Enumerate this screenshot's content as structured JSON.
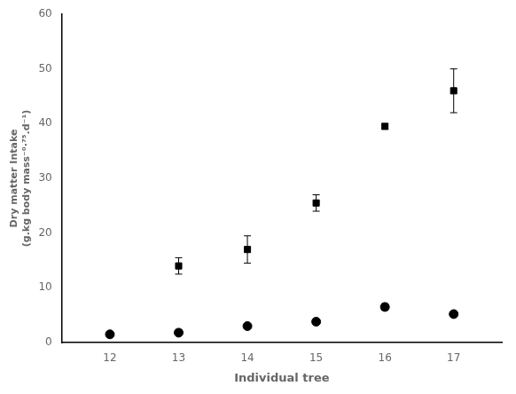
{
  "chart_data": {
    "type": "scatter",
    "xlabel": "Individual tree",
    "ylabel": "Dry matter Intake\n(g.kg body mass⁻⁰·⁷⁵.d⁻¹)",
    "xlim": [
      11.3,
      17.7
    ],
    "xticks": [
      12,
      13,
      14,
      15,
      16,
      17
    ],
    "ylim": [
      0,
      60
    ],
    "yticks": [
      0,
      10,
      20,
      30,
      40,
      50,
      60
    ],
    "grid": false,
    "series": [
      {
        "marker": "square",
        "color": "black",
        "x": [
          13,
          14,
          15,
          16,
          17
        ],
        "values": [
          14.0,
          17.0,
          25.5,
          39.5,
          46.0
        ],
        "errors": [
          1.5,
          2.5,
          1.5,
          0.5,
          4.0
        ]
      },
      {
        "marker": "circle",
        "color": "black",
        "x": [
          12,
          13,
          14,
          15,
          16,
          17
        ],
        "values": [
          1.5,
          1.8,
          3.0,
          3.8,
          6.5,
          5.2
        ],
        "errors": [
          0.4,
          0.4,
          0.4,
          0.3,
          0.6,
          0.4
        ]
      }
    ]
  }
}
